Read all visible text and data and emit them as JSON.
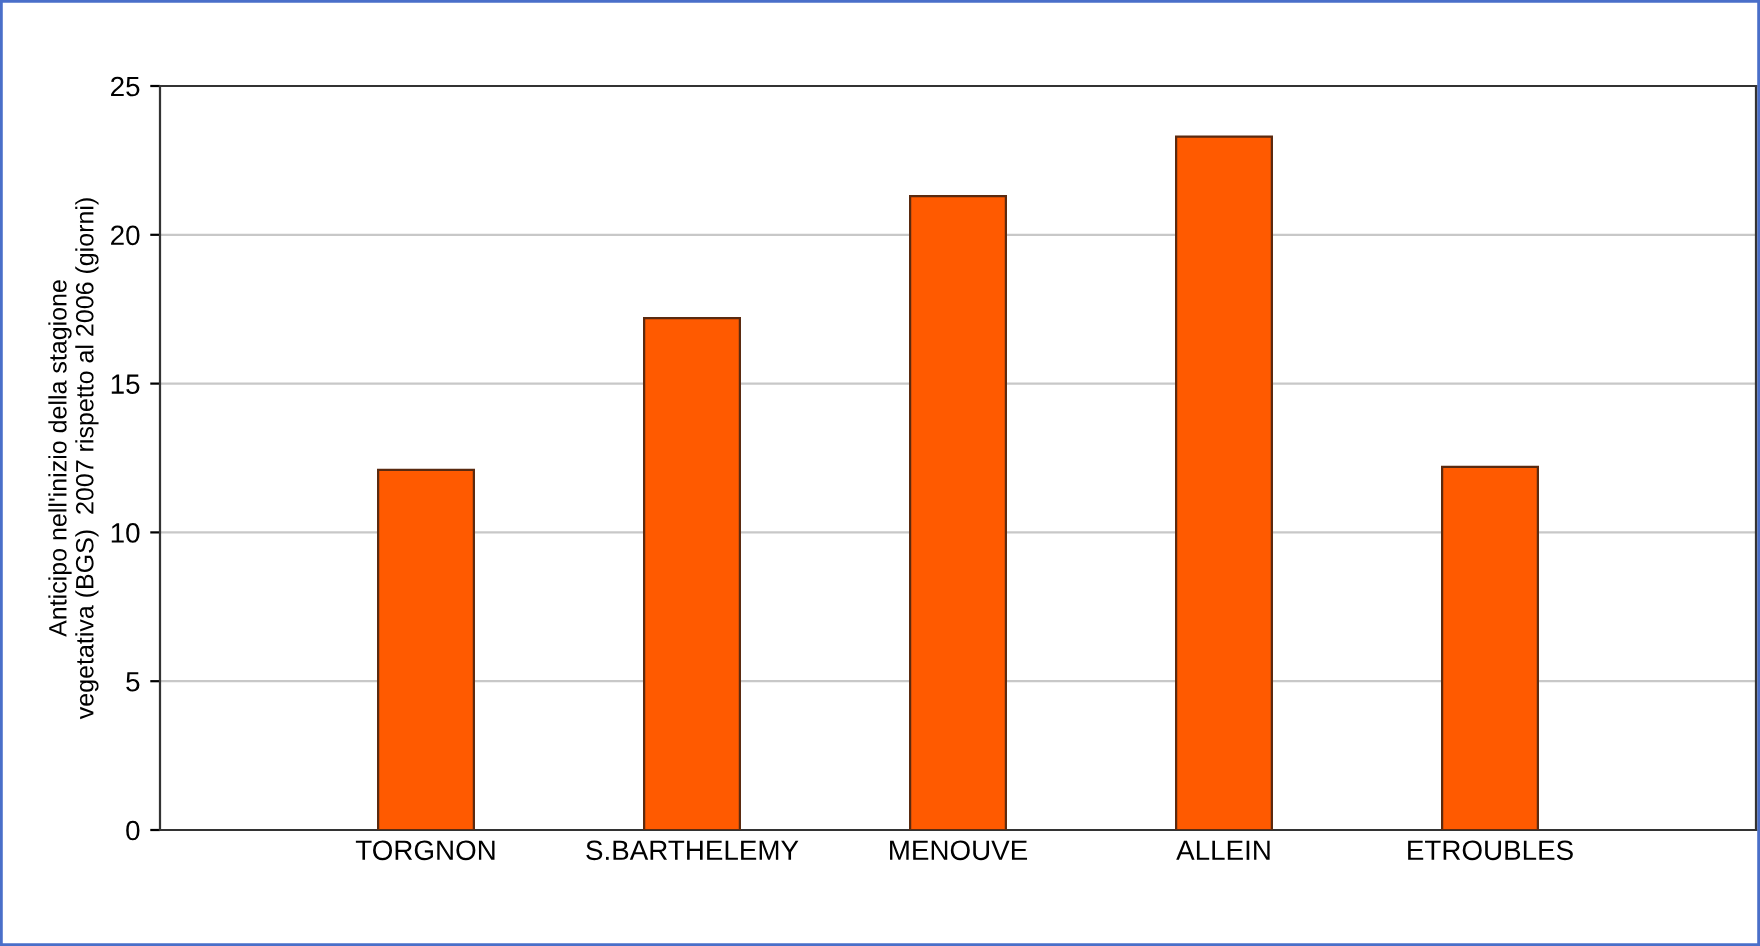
{
  "chart_data": {
    "type": "bar",
    "ylabel": "Anticipo nell'inizio della stagione\nvegetativa (BGS)  2007 rispetto al 2006 (giorni)",
    "categories": [
      "TORGNON",
      "S.BARTHELEMY",
      "MENOUVE",
      "ALLEIN",
      "ETROUBLES"
    ],
    "values": [
      12.1,
      17.2,
      21.3,
      23.3,
      12.2
    ],
    "color": "#ff5a00",
    "ylim": [
      0,
      25
    ],
    "yticks": [
      0,
      5,
      10,
      15,
      20,
      25
    ],
    "grid": "y"
  }
}
